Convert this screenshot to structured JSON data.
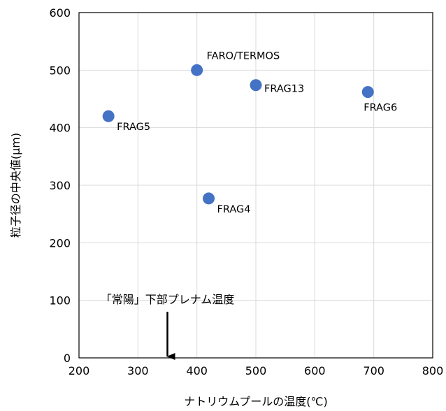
{
  "chart_data": {
    "type": "scatter",
    "xlabel": "ナトリウムプールの温度(℃)",
    "ylabel": "粒子径の中央値(μm)",
    "xlim": [
      200,
      800
    ],
    "ylim": [
      0,
      600
    ],
    "x_ticks": [
      200,
      300,
      400,
      500,
      600,
      700,
      800
    ],
    "y_ticks": [
      0,
      100,
      200,
      300,
      400,
      500,
      600
    ],
    "grid": true,
    "marker_color": "#4472C4",
    "points": [
      {
        "label": "FRAG5",
        "x": 250,
        "y": 420,
        "label_pos": "below-right"
      },
      {
        "label": "FARO/TERMOS",
        "x": 400,
        "y": 500,
        "label_pos": "above-right"
      },
      {
        "label": "FRAG4",
        "x": 420,
        "y": 277,
        "label_pos": "below-right"
      },
      {
        "label": "FRAG13",
        "x": 500,
        "y": 474,
        "label_pos": "right"
      },
      {
        "label": "FRAG6",
        "x": 690,
        "y": 462,
        "label_pos": "below"
      }
    ],
    "annotation": {
      "text": "「常陽」下部プレナム温度",
      "x": 350
    }
  }
}
